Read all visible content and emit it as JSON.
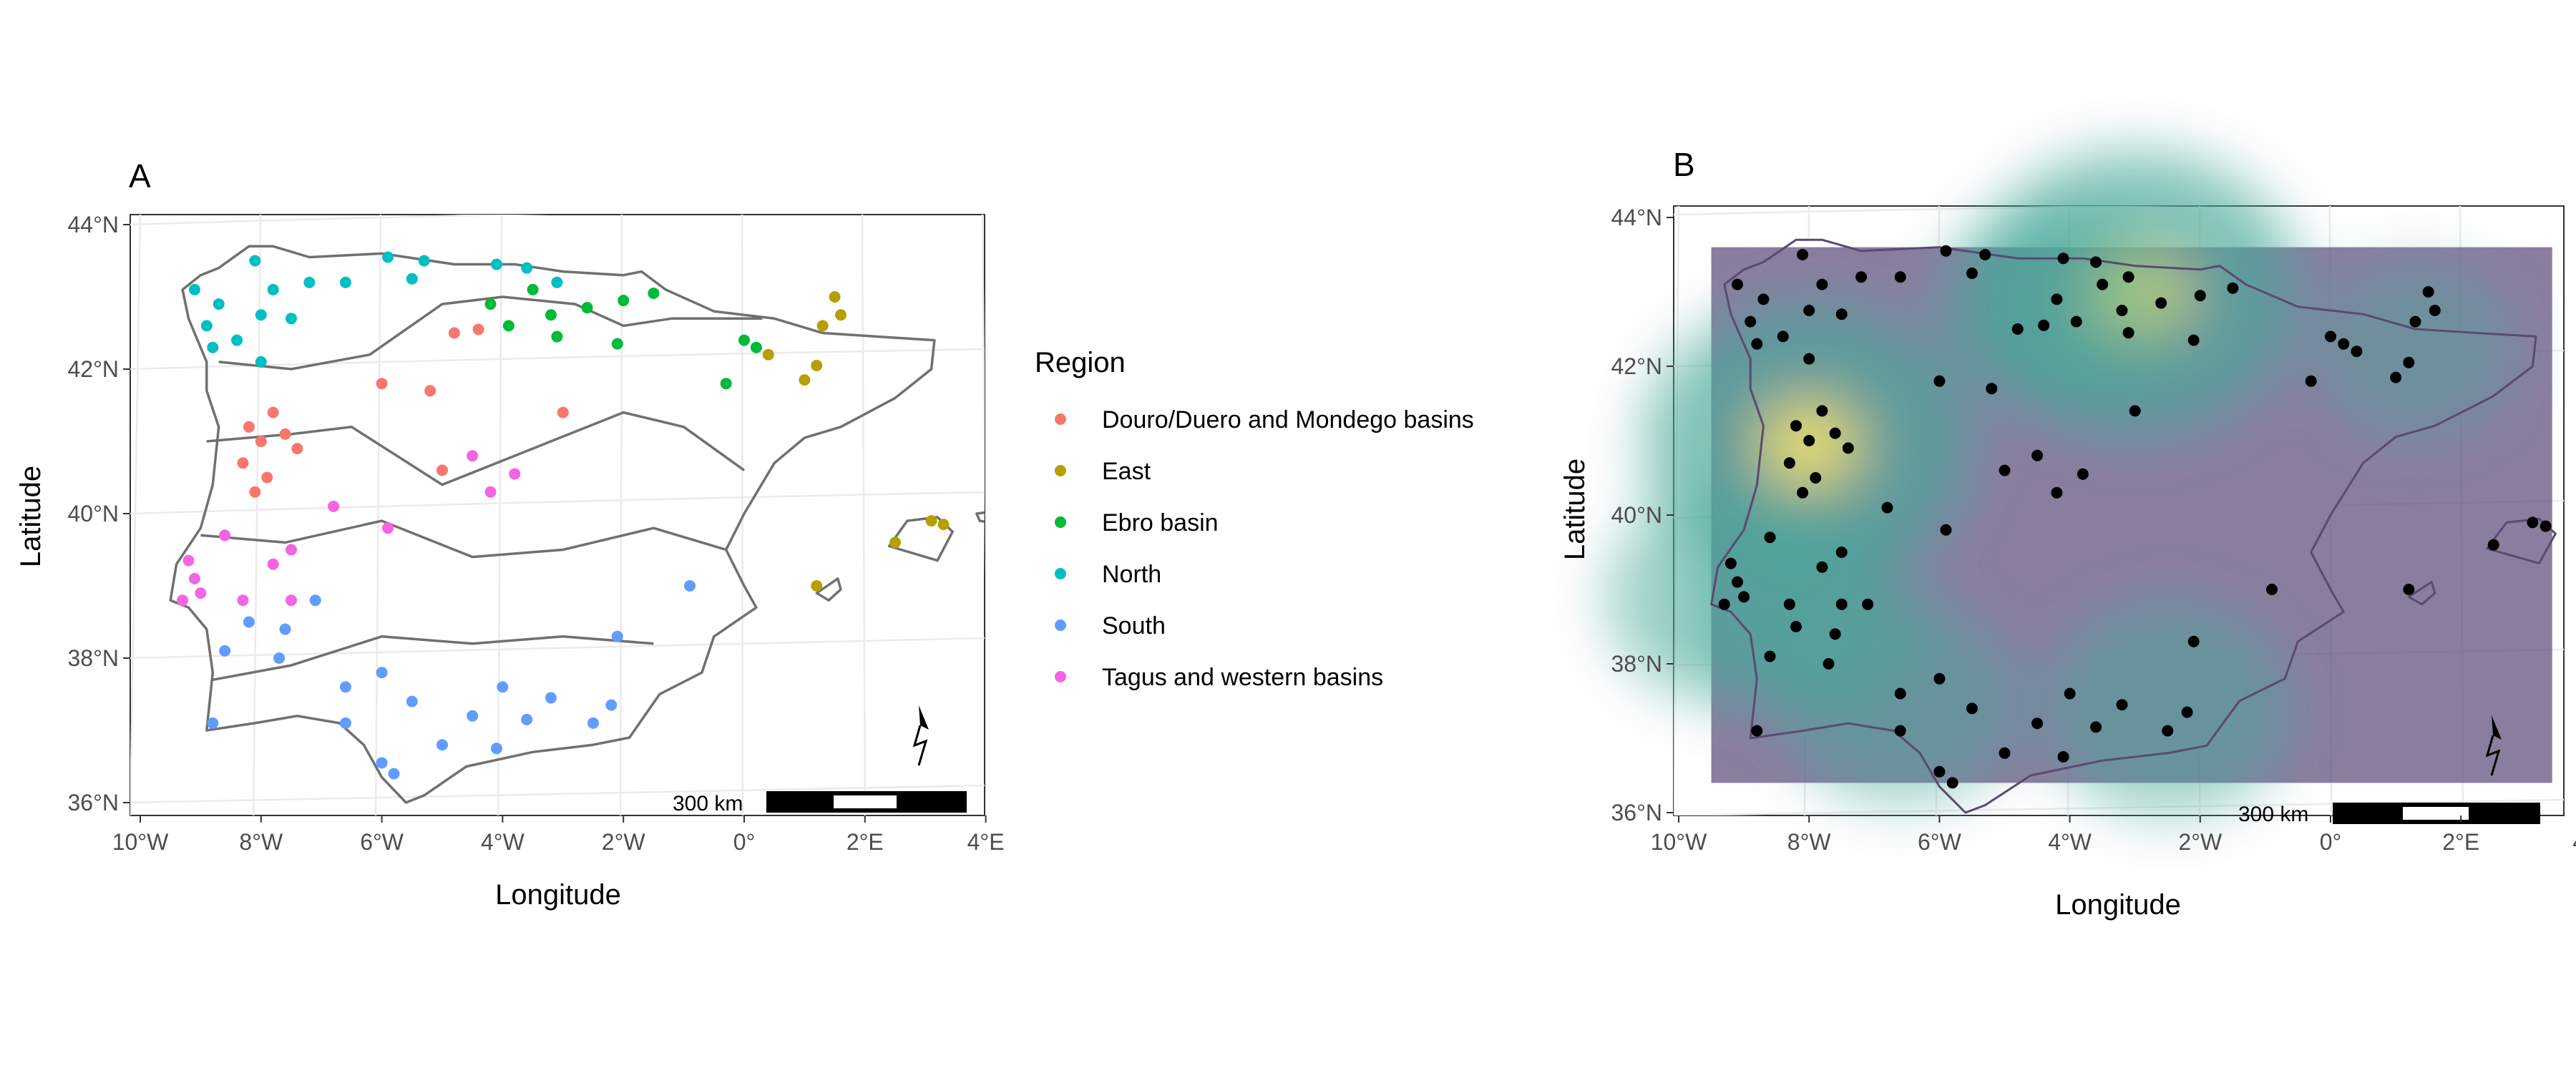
{
  "panels": [
    {
      "label": "A",
      "xlabel": "Longitude",
      "ylabel": "Latitude",
      "x_ticks": [
        "10°W",
        "8°W",
        "6°W",
        "4°W",
        "2°W",
        "0°",
        "2°E",
        "4°E"
      ],
      "y_ticks": [
        "44°N",
        "42°N",
        "40°N",
        "38°N",
        "36°N"
      ],
      "scalebar": "300 km",
      "north_arrow": "north-arrow-icon"
    },
    {
      "label": "B",
      "xlabel": "Longitude",
      "ylabel": "Latitude",
      "x_ticks": [
        "10°W",
        "8°W",
        "6°W",
        "4°W",
        "2°W",
        "0°",
        "2°E",
        "4°E"
      ],
      "y_ticks": [
        "44°N",
        "42°N",
        "40°N",
        "38°N",
        "36°N"
      ],
      "scalebar": "300 km",
      "north_arrow": "north-arrow-icon"
    }
  ],
  "legend": {
    "title": "Region",
    "items": [
      {
        "label": "Douro/Duero and Mondego basins",
        "color": "#F8766D"
      },
      {
        "label": "East",
        "color": "#B79F00"
      },
      {
        "label": "Ebro basin",
        "color": "#00BA38"
      },
      {
        "label": "North",
        "color": "#00BFC4"
      },
      {
        "label": "South",
        "color": "#619CFF"
      },
      {
        "label": "Tagus and western basins",
        "color": "#F564E3"
      }
    ]
  },
  "colors": {
    "outline": "#707070",
    "density_low": "#5e4b7a",
    "density_mid": "#4aa89a",
    "density_high": "#f1e36a",
    "points_b": "#000000"
  },
  "sites": [
    {
      "region": "North",
      "lon": -9.1,
      "lat": 43.1
    },
    {
      "region": "North",
      "lon": -8.9,
      "lat": 42.6
    },
    {
      "region": "North",
      "lon": -8.7,
      "lat": 42.9
    },
    {
      "region": "North",
      "lon": -8.4,
      "lat": 42.4
    },
    {
      "region": "North",
      "lon": -8.1,
      "lat": 43.5
    },
    {
      "region": "North",
      "lon": -7.8,
      "lat": 43.1
    },
    {
      "region": "North",
      "lon": -7.5,
      "lat": 42.7
    },
    {
      "region": "North",
      "lon": -8.0,
      "lat": 42.1
    },
    {
      "region": "North",
      "lon": -7.2,
      "lat": 43.2
    },
    {
      "region": "North",
      "lon": -6.6,
      "lat": 43.2
    },
    {
      "region": "North",
      "lon": -5.9,
      "lat": 43.55
    },
    {
      "region": "North",
      "lon": -5.3,
      "lat": 43.5
    },
    {
      "region": "North",
      "lon": -5.5,
      "lat": 43.25
    },
    {
      "region": "North",
      "lon": -4.1,
      "lat": 43.45
    },
    {
      "region": "North",
      "lon": -3.6,
      "lat": 43.4
    },
    {
      "region": "North",
      "lon": -3.1,
      "lat": 43.2
    },
    {
      "region": "North",
      "lon": -8.8,
      "lat": 42.3
    },
    {
      "region": "North",
      "lon": -8.0,
      "lat": 42.75
    },
    {
      "region": "Ebro basin",
      "lon": -4.2,
      "lat": 42.9
    },
    {
      "region": "Ebro basin",
      "lon": -3.9,
      "lat": 42.6
    },
    {
      "region": "Ebro basin",
      "lon": -3.5,
      "lat": 43.1
    },
    {
      "region": "Ebro basin",
      "lon": -3.2,
      "lat": 42.75
    },
    {
      "region": "Ebro basin",
      "lon": -3.1,
      "lat": 42.45
    },
    {
      "region": "Ebro basin",
      "lon": -2.6,
      "lat": 42.85
    },
    {
      "region": "Ebro basin",
      "lon": -2.1,
      "lat": 42.35
    },
    {
      "region": "Ebro basin",
      "lon": -2.0,
      "lat": 42.95
    },
    {
      "region": "Ebro basin",
      "lon": -1.5,
      "lat": 43.05
    },
    {
      "region": "Ebro basin",
      "lon": -0.3,
      "lat": 41.8
    },
    {
      "region": "Ebro basin",
      "lon": 0.0,
      "lat": 42.4
    },
    {
      "region": "Ebro basin",
      "lon": 0.2,
      "lat": 42.3
    },
    {
      "region": "East",
      "lon": 0.4,
      "lat": 42.2
    },
    {
      "region": "East",
      "lon": 1.0,
      "lat": 41.85
    },
    {
      "region": "East",
      "lon": 1.3,
      "lat": 42.6
    },
    {
      "region": "East",
      "lon": 1.5,
      "lat": 43.0
    },
    {
      "region": "East",
      "lon": 1.6,
      "lat": 42.75
    },
    {
      "region": "East",
      "lon": 1.2,
      "lat": 42.05
    },
    {
      "region": "East",
      "lon": 2.5,
      "lat": 39.6
    },
    {
      "region": "East",
      "lon": 3.1,
      "lat": 39.9
    },
    {
      "region": "East",
      "lon": 3.3,
      "lat": 39.85
    },
    {
      "region": "East",
      "lon": 1.2,
      "lat": 39.0
    },
    {
      "region": "Douro/Duero and Mondego basins",
      "lon": -8.2,
      "lat": 41.2
    },
    {
      "region": "Douro/Duero and Mondego basins",
      "lon": -8.0,
      "lat": 41.0
    },
    {
      "region": "Douro/Duero and Mondego basins",
      "lon": -7.8,
      "lat": 41.4
    },
    {
      "region": "Douro/Duero and Mondego basins",
      "lon": -7.6,
      "lat": 41.1
    },
    {
      "region": "Douro/Duero and Mondego basins",
      "lon": -8.3,
      "lat": 40.7
    },
    {
      "region": "Douro/Duero and Mondego basins",
      "lon": -7.9,
      "lat": 40.5
    },
    {
      "region": "Douro/Duero and Mondego basins",
      "lon": -8.1,
      "lat": 40.3
    },
    {
      "region": "Douro/Duero and Mondego basins",
      "lon": -7.4,
      "lat": 40.9
    },
    {
      "region": "Douro/Duero and Mondego basins",
      "lon": -6.0,
      "lat": 41.8
    },
    {
      "region": "Douro/Duero and Mondego basins",
      "lon": -5.2,
      "lat": 41.7
    },
    {
      "region": "Douro/Duero and Mondego basins",
      "lon": -4.8,
      "lat": 42.5
    },
    {
      "region": "Douro/Duero and Mondego basins",
      "lon": -4.4,
      "lat": 42.55
    },
    {
      "region": "Douro/Duero and Mondego basins",
      "lon": -5.0,
      "lat": 40.6
    },
    {
      "region": "Douro/Duero and Mondego basins",
      "lon": -3.0,
      "lat": 41.4
    },
    {
      "region": "Tagus and western basins",
      "lon": -9.3,
      "lat": 38.8
    },
    {
      "region": "Tagus and western basins",
      "lon": -9.1,
      "lat": 39.1
    },
    {
      "region": "Tagus and western basins",
      "lon": -9.2,
      "lat": 39.35
    },
    {
      "region": "Tagus and western basins",
      "lon": -9.0,
      "lat": 38.9
    },
    {
      "region": "Tagus and western basins",
      "lon": -8.6,
      "lat": 39.7
    },
    {
      "region": "Tagus and western basins",
      "lon": -8.3,
      "lat": 38.8
    },
    {
      "region": "Tagus and western basins",
      "lon": -7.8,
      "lat": 39.3
    },
    {
      "region": "Tagus and western basins",
      "lon": -7.5,
      "lat": 39.5
    },
    {
      "region": "Tagus and western basins",
      "lon": -6.8,
      "lat": 40.1
    },
    {
      "region": "Tagus and western basins",
      "lon": -5.9,
      "lat": 39.8
    },
    {
      "region": "Tagus and western basins",
      "lon": -4.5,
      "lat": 40.8
    },
    {
      "region": "Tagus and western basins",
      "lon": -4.2,
      "lat": 40.3
    },
    {
      "region": "Tagus and western basins",
      "lon": -3.8,
      "lat": 40.55
    },
    {
      "region": "Tagus and western basins",
      "lon": -7.5,
      "lat": 38.8
    },
    {
      "region": "South",
      "lon": -8.6,
      "lat": 38.1
    },
    {
      "region": "South",
      "lon": -8.2,
      "lat": 38.5
    },
    {
      "region": "South",
      "lon": -7.6,
      "lat": 38.4
    },
    {
      "region": "South",
      "lon": -7.7,
      "lat": 38.0
    },
    {
      "region": "South",
      "lon": -7.1,
      "lat": 38.8
    },
    {
      "region": "South",
      "lon": -6.6,
      "lat": 37.6
    },
    {
      "region": "South",
      "lon": -6.0,
      "lat": 37.8
    },
    {
      "region": "South",
      "lon": -5.5,
      "lat": 37.4
    },
    {
      "region": "South",
      "lon": -5.0,
      "lat": 36.8
    },
    {
      "region": "South",
      "lon": -4.5,
      "lat": 37.2
    },
    {
      "region": "South",
      "lon": -4.1,
      "lat": 36.75
    },
    {
      "region": "South",
      "lon": -3.6,
      "lat": 37.15
    },
    {
      "region": "South",
      "lon": -3.2,
      "lat": 37.45
    },
    {
      "region": "South",
      "lon": -2.5,
      "lat": 37.1
    },
    {
      "region": "South",
      "lon": -2.2,
      "lat": 37.35
    },
    {
      "region": "South",
      "lon": -2.1,
      "lat": 38.3
    },
    {
      "region": "South",
      "lon": -8.8,
      "lat": 37.1
    },
    {
      "region": "South",
      "lon": -6.0,
      "lat": 36.55
    },
    {
      "region": "South",
      "lon": -5.8,
      "lat": 36.4
    },
    {
      "region": "South",
      "lon": -0.9,
      "lat": 39.0
    },
    {
      "region": "South",
      "lon": -4.0,
      "lat": 37.6
    },
    {
      "region": "South",
      "lon": -6.6,
      "lat": 37.1
    }
  ],
  "density_centers": [
    {
      "lon": -8.0,
      "lat": 40.95,
      "level": 1.0
    },
    {
      "lon": -3.0,
      "lat": 42.95,
      "level": 1.0
    },
    {
      "lon": -2.5,
      "lat": 37.4,
      "level": 0.55
    },
    {
      "lon": -6.6,
      "lat": 37.5,
      "level": 0.5
    },
    {
      "lon": -9.2,
      "lat": 38.9,
      "level": 0.55
    },
    {
      "lon": -4.3,
      "lat": 42.8,
      "level": 0.45
    },
    {
      "lon": -8.0,
      "lat": 38.6,
      "level": 0.45
    },
    {
      "lon": 1.3,
      "lat": 42.2,
      "level": 0.3
    }
  ]
}
